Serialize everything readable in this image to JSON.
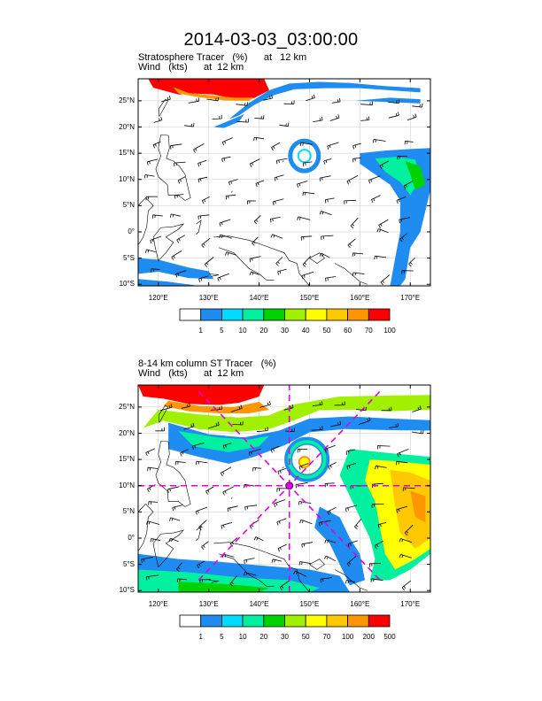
{
  "title": "2014-03-03_03:00:00",
  "colors": {
    "c1": "#ffffff",
    "c2": "#1e8cf0",
    "c3": "#00dcff",
    "c4": "#00f0a0",
    "c5": "#00d200",
    "c6": "#a0f000",
    "c7": "#ffff00",
    "c8": "#ffc800",
    "c9": "#ff9600",
    "c10": "#ff0000",
    "land": "#000000",
    "frame": "#000000",
    "dash": "#e000e0",
    "grid": "#c8c8c8"
  },
  "chart_data": [
    {
      "type": "heatmap",
      "panel": "top",
      "title_line1": "Stratosphere Tracer   (%)      at   12 km",
      "title_line2": "Wind   (kts)      at  12 km",
      "x_range": [
        116,
        174
      ],
      "y_range": [
        -10.3,
        29.2
      ],
      "x_ticks": [
        120,
        130,
        140,
        150,
        160,
        170
      ],
      "x_tick_labels": [
        "120°E",
        "130°E",
        "140°E",
        "150°E",
        "160°E",
        "170°E"
      ],
      "y_ticks": [
        -10,
        -5,
        0,
        5,
        10,
        15,
        20,
        25
      ],
      "y_tick_labels": [
        "10°S",
        "5°S",
        "0°",
        "5°N",
        "10°N",
        "15°N",
        "20°N",
        "25°N"
      ],
      "colorbar_levels": [
        "1",
        "5",
        "10",
        "20",
        "30",
        "40",
        "50",
        "60",
        "70",
        "100"
      ],
      "colorbar_colors": [
        "#ffffff",
        "#1e8cf0",
        "#00dcff",
        "#00f0a0",
        "#00d200",
        "#a0f000",
        "#ffff00",
        "#ffc800",
        "#ff9600",
        "#ff0000"
      ],
      "features": [
        {
          "name": "stratospheric-intrusion-north",
          "value_range": "70-100"
        },
        {
          "name": "jet-band-blue",
          "value_range": "5-10"
        },
        {
          "name": "vortex-ring",
          "center": [
            149,
            14.5
          ],
          "value_range": "5-10"
        },
        {
          "name": "east-pacific-band",
          "value_range": "5-40"
        },
        {
          "name": "south-band",
          "value_range": "5-10"
        }
      ]
    },
    {
      "type": "heatmap",
      "panel": "bottom",
      "title_line1": "8-14 km column ST Tracer   (%)",
      "title_line2": "Wind   (kts)      at  12 km",
      "x_range": [
        116,
        174
      ],
      "y_range": [
        -10.3,
        29.2
      ],
      "x_ticks": [
        120,
        130,
        140,
        150,
        160,
        170
      ],
      "x_tick_labels": [
        "120°E",
        "130°E",
        "140°E",
        "150°E",
        "160°E",
        "170°E"
      ],
      "y_ticks": [
        -10,
        -5,
        0,
        5,
        10,
        15,
        20,
        25
      ],
      "y_tick_labels": [
        "10°S",
        "5°S",
        "0°",
        "5°N",
        "10°N",
        "15°N",
        "20°N",
        "25°N"
      ],
      "colorbar_levels": [
        "1",
        "5",
        "10",
        "20",
        "30",
        "50",
        "70",
        "100",
        "200",
        "500"
      ],
      "colorbar_colors": [
        "#ffffff",
        "#1e8cf0",
        "#00dcff",
        "#00f0a0",
        "#00d200",
        "#a0f000",
        "#ffff00",
        "#ffc800",
        "#ff9600",
        "#ff0000"
      ],
      "storm_center": [
        146,
        10
      ],
      "cross_section_lines": [
        {
          "from": [
            116,
            10
          ],
          "to": [
            174,
            10
          ]
        },
        {
          "from": [
            146,
            -10.3
          ],
          "to": [
            146,
            29.2
          ]
        },
        {
          "from": [
            128,
            -8
          ],
          "to": [
            164,
            28
          ]
        },
        {
          "from": [
            128,
            28
          ],
          "to": [
            164,
            -8
          ]
        }
      ],
      "features": [
        {
          "name": "stratospheric-intrusion-north",
          "value_range": "200-500"
        },
        {
          "name": "jet-band-green-blue",
          "value_range": "5-50"
        },
        {
          "name": "vortex-ring",
          "center": [
            149,
            14.5
          ],
          "value_range": "5-30"
        },
        {
          "name": "east-pacific-band",
          "value_range": "20-200"
        },
        {
          "name": "south-band",
          "value_range": "5-30"
        }
      ]
    }
  ]
}
